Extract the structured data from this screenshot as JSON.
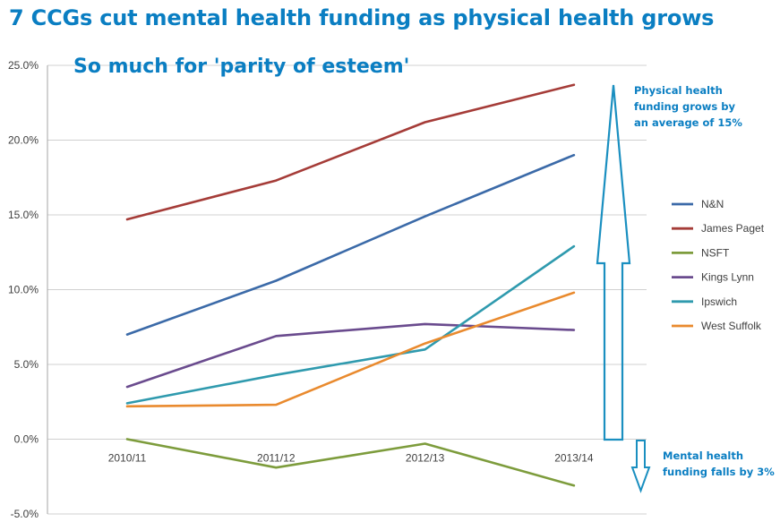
{
  "title": "7 CCGs cut mental health funding as physical health grows",
  "subtitle": "So much for 'parity of esteem'",
  "annotations": {
    "up": "Physical health funding grows by an average of 15%",
    "down": "Mental health funding falls by 3%"
  },
  "colors": {
    "title": "#0a7ec2",
    "arrow": "#1a8fc0"
  },
  "chart_data": {
    "type": "line",
    "categories": [
      "2010/11",
      "2011/12",
      "2012/13",
      "2013/14"
    ],
    "ylim": [
      -5,
      25
    ],
    "yticks": [
      -5,
      0,
      5,
      10,
      15,
      20,
      25
    ],
    "ytick_labels": [
      "-5.0%",
      "0.0%",
      "5.0%",
      "10.0%",
      "15.0%",
      "20.0%",
      "25.0%"
    ],
    "grid": true,
    "legend": "right",
    "series": [
      {
        "name": "N&N",
        "color": "#3b6aa8",
        "values": [
          7.0,
          10.6,
          14.9,
          19.0
        ]
      },
      {
        "name": "James Paget",
        "color": "#a53c38",
        "values": [
          14.7,
          17.3,
          21.2,
          23.7
        ]
      },
      {
        "name": "NSFT",
        "color": "#7d9c3c",
        "values": [
          0.0,
          -1.9,
          -0.3,
          -3.1
        ]
      },
      {
        "name": "Kings Lynn",
        "color": "#6a4b8e",
        "values": [
          3.5,
          6.9,
          7.7,
          7.3
        ]
      },
      {
        "name": "Ipswich",
        "color": "#2f9aae",
        "values": [
          2.4,
          4.3,
          6.0,
          12.9
        ]
      },
      {
        "name": "West Suffolk",
        "color": "#e98a2e",
        "values": [
          2.2,
          2.3,
          6.4,
          9.8
        ]
      }
    ]
  }
}
